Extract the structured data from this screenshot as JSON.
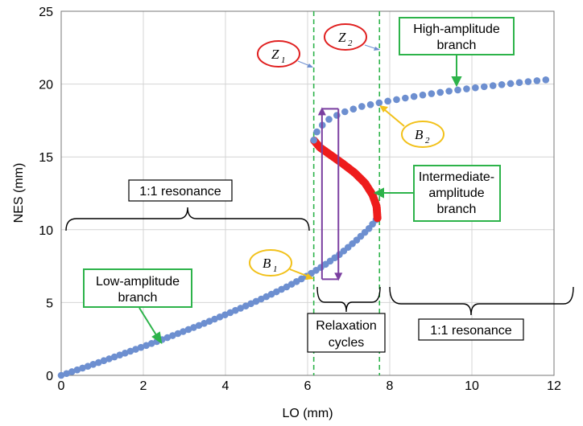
{
  "chart_data": {
    "type": "scatter",
    "title": "",
    "xlabel": "LO (mm)",
    "ylabel": "NES (mm)",
    "xlim": [
      0,
      12
    ],
    "ylim": [
      0,
      25
    ],
    "xticks": [
      "0",
      "2",
      "4",
      "6",
      "8",
      "10",
      "12"
    ],
    "yticks": [
      "0",
      "5",
      "10",
      "15",
      "20",
      "25"
    ],
    "grid": true,
    "colors": {
      "stable": "#6d8fd0",
      "unstable": "#ee1c1c",
      "arrow_green": "#2db34a",
      "arrow_purple": "#7a3ea0",
      "ellipse_red": "#e02020",
      "ellipse_yellow": "#f2c11a",
      "box_green": "#2db34a",
      "dashed_green": "#2db34a"
    },
    "series": [
      {
        "name": "Low-amplitude branch",
        "style": "stable",
        "points": [
          [
            0,
            0
          ],
          [
            0.5,
            0.48
          ],
          [
            1,
            0.97
          ],
          [
            1.5,
            1.47
          ],
          [
            2,
            1.98
          ],
          [
            2.5,
            2.5
          ],
          [
            3,
            3.04
          ],
          [
            3.5,
            3.59
          ],
          [
            4,
            4.17
          ],
          [
            4.5,
            4.77
          ],
          [
            5,
            5.41
          ],
          [
            5.5,
            6.09
          ],
          [
            6,
            6.85
          ],
          [
            6.4,
            7.55
          ],
          [
            6.8,
            8.35
          ],
          [
            7.2,
            9.3
          ],
          [
            7.5,
            10.1
          ],
          [
            7.7,
            10.8
          ]
        ]
      },
      {
        "name": "Intermediate-amplitude branch",
        "style": "unstable",
        "points": [
          [
            7.7,
            10.8
          ],
          [
            7.68,
            11.6
          ],
          [
            7.58,
            12.4
          ],
          [
            7.4,
            13.2
          ],
          [
            7.15,
            13.9
          ],
          [
            6.85,
            14.55
          ],
          [
            6.55,
            15.15
          ],
          [
            6.3,
            15.65
          ],
          [
            6.15,
            16.15
          ]
        ]
      },
      {
        "name": "High-amplitude branch",
        "style": "stable",
        "points": [
          [
            6.15,
            16.15
          ],
          [
            6.25,
            16.9
          ],
          [
            6.5,
            17.55
          ],
          [
            6.85,
            18.05
          ],
          [
            7.3,
            18.45
          ],
          [
            7.8,
            18.75
          ],
          [
            8.3,
            19.0
          ],
          [
            8.8,
            19.25
          ],
          [
            9.4,
            19.5
          ],
          [
            10,
            19.72
          ],
          [
            10.6,
            19.92
          ],
          [
            11.2,
            20.12
          ],
          [
            12,
            20.35
          ]
        ]
      }
    ],
    "vlines": [
      {
        "label": "Z1",
        "x": 6.15
      },
      {
        "label": "Z2",
        "x": 7.75
      }
    ],
    "annotations": {
      "low_branch": [
        "Low-amplitude",
        "branch"
      ],
      "high_branch": [
        "High-amplitude",
        "branch"
      ],
      "intermediate_branch": [
        "Intermediate-",
        "amplitude",
        "branch"
      ],
      "resonance_left": "1:1 resonance",
      "resonance_right": "1:1 resonance",
      "relaxation": [
        "Relaxation",
        "cycles"
      ],
      "Z1": {
        "main": "Z",
        "sub": "1"
      },
      "Z2": {
        "main": "Z",
        "sub": "2"
      },
      "B1": {
        "main": "B",
        "sub": "1"
      },
      "B2": {
        "main": "B",
        "sub": "2"
      }
    },
    "relaxation_cycle": {
      "x": [
        6.35,
        6.75
      ],
      "y_low": 6.6,
      "y_high": 18.3
    }
  }
}
